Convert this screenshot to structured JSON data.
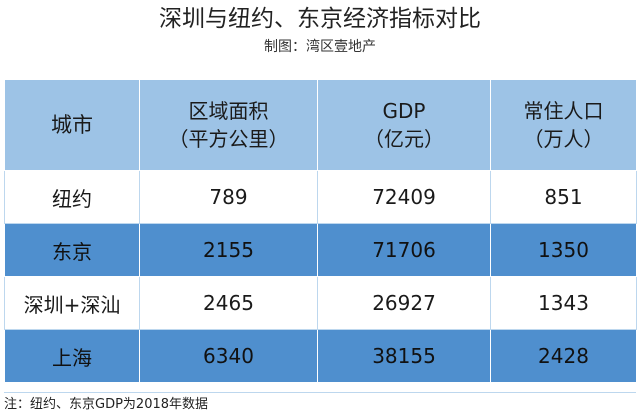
{
  "title": "深圳与纽约、东京经济指标对比",
  "subtitle": "制图：湾区壹地产",
  "table": {
    "headers": [
      {
        "line1": "城市",
        "line2": ""
      },
      {
        "line1": "区域面积",
        "line2": "（平方公里）"
      },
      {
        "line1": "GDP",
        "line2": "（亿元）"
      },
      {
        "line1": "常住人口",
        "line2": "（万人）"
      }
    ],
    "rows": [
      {
        "city": "纽约",
        "area": "789",
        "gdp": "72409",
        "pop": "851"
      },
      {
        "city": "东京",
        "area": "2155",
        "gdp": "71706",
        "pop": "1350"
      },
      {
        "city": "深圳+深汕",
        "area": "2465",
        "gdp": "26927",
        "pop": "1343"
      },
      {
        "city": "上海",
        "area": "6340",
        "gdp": "38155",
        "pop": "2428"
      }
    ]
  },
  "note": "注：纽约、东京GDP为2018年数据",
  "colors": {
    "header_bg": "#9dc3e6",
    "band_bg": "#4f8fce",
    "plain_bg": "#ffffff"
  }
}
